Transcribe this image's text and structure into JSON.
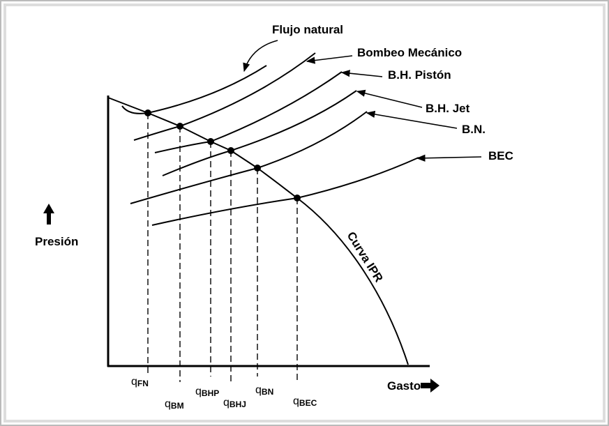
{
  "curves": [
    {
      "label": "Flujo natural"
    },
    {
      "label": "Bombeo Mecánico"
    },
    {
      "label": "B.H. Pistón"
    },
    {
      "label": "B.H. Jet"
    },
    {
      "label": "B.N."
    },
    {
      "label": "BEC"
    }
  ],
  "axes": {
    "y_label": "Presión",
    "x_label": "Gasto"
  },
  "ipr_label": "Curva IPR",
  "rates": [
    {
      "main": "q",
      "sub": "FN"
    },
    {
      "main": "q",
      "sub": "BM"
    },
    {
      "main": "q",
      "sub": "BHP"
    },
    {
      "main": "q",
      "sub": "BHJ"
    },
    {
      "main": "q",
      "sub": "BN"
    },
    {
      "main": "q",
      "sub": "BEC"
    }
  ]
}
